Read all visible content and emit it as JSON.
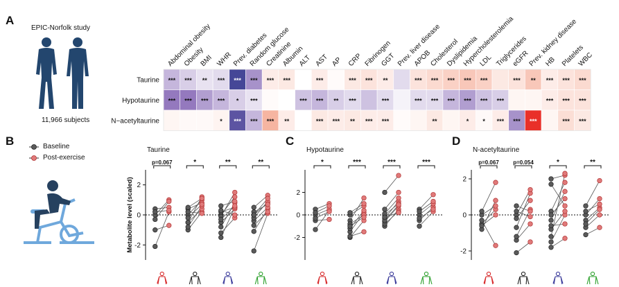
{
  "panels": {
    "a": "A",
    "b": "B",
    "c": "C",
    "d": "D"
  },
  "cohort": {
    "study": "EPIC-Norfolk study",
    "subjects": "11,966 subjects"
  },
  "legend": {
    "baseline": "Baseline",
    "post": "Post-exercise"
  },
  "colors": {
    "baseline": "#5a5a5a",
    "post": "#e07a7a",
    "strong_neg": "#2e3a8c",
    "strong_pos": "#e8231e",
    "fig_red": "#d62728",
    "fig_black": "#222222",
    "fig_blue": "#3a3a9a",
    "fig_green": "#2ca02c"
  },
  "chart_data": [
    {
      "type": "heatmap",
      "columns": [
        "Abdominal obesity",
        "Obesity",
        "BMI",
        "WHR",
        "Prev. diabetes",
        "Random glucose",
        "Creatinine",
        "Albumin",
        "ALT",
        "AST",
        "AP",
        "CRP",
        "Fibrinogen",
        "GGT",
        "Prev. liver disease",
        "APOB",
        "Cholesterol",
        "Dyslipidemia",
        "Hypercholesterolemia",
        "LDL",
        "Triglycerides",
        "eGFR",
        "Prev. kidney disease",
        "HB",
        "Platelets",
        "WBC"
      ],
      "rows": [
        "Taurine",
        "Hypotaurine",
        "N−acetyltaurine"
      ],
      "values": [
        [
          -0.3,
          -0.2,
          -0.12,
          -0.15,
          -0.9,
          -0.45,
          0.1,
          0.12,
          0.0,
          0.1,
          0.02,
          0.12,
          0.15,
          0.1,
          -0.15,
          0.15,
          0.2,
          0.25,
          0.3,
          0.25,
          0.12,
          0.15,
          0.3,
          0.1,
          0.15,
          0.2
        ],
        [
          -0.55,
          -0.55,
          -0.4,
          -0.3,
          -0.2,
          -0.12,
          0.02,
          0.0,
          -0.25,
          -0.3,
          -0.2,
          -0.15,
          -0.25,
          -0.15,
          -0.05,
          -0.15,
          -0.15,
          -0.3,
          -0.4,
          -0.25,
          -0.2,
          0.05,
          0.05,
          0.1,
          0.15,
          0.15
        ],
        [
          0.05,
          0.03,
          0.03,
          0.06,
          -0.8,
          -0.3,
          0.4,
          0.1,
          0.0,
          0.12,
          0.1,
          0.12,
          0.1,
          0.1,
          0.02,
          0.05,
          0.12,
          0.05,
          0.1,
          0.03,
          0.1,
          -0.45,
          0.95,
          0.05,
          0.18,
          0.12
        ]
      ],
      "stars": [
        [
          "***",
          "***",
          "**",
          "***",
          "***",
          "***",
          "***",
          "***",
          "",
          "***",
          "",
          "***",
          "***",
          "**",
          "",
          "***",
          "***",
          "***",
          "***",
          "***",
          "",
          "***",
          "**",
          "***",
          "***",
          "***"
        ],
        [
          "***",
          "***",
          "***",
          "***",
          "*",
          "***",
          "",
          "",
          "***",
          "***",
          "**",
          "***",
          "",
          "***",
          "",
          "***",
          "***",
          "***",
          "***",
          "***",
          "***",
          "",
          "",
          "***",
          "***",
          "***"
        ],
        [
          "",
          "",
          "",
          "*",
          "***",
          "***",
          "***",
          "**",
          "",
          "***",
          "***",
          "**",
          "***",
          "***",
          "",
          "",
          "**",
          "",
          "*",
          "*",
          "***",
          "***",
          "***",
          "",
          "***",
          "***"
        ]
      ]
    },
    {
      "type": "scatter",
      "title": "Taurine",
      "ylabel": "Metabolite level (scaled)",
      "ylim": [
        -3,
        3
      ],
      "yticks": [
        -2,
        0,
        2
      ],
      "groups": [
        "female-red",
        "male-black",
        "female-blue",
        "male-green"
      ],
      "annotations": [
        "p=0.067",
        "*",
        "**",
        "**"
      ],
      "pairs": [
        [
          [
            -2.1,
            0.2
          ],
          [
            -1.0,
            -0.7
          ],
          [
            0.4,
            0.5
          ],
          [
            0.0,
            1.0
          ],
          [
            0.2,
            0.3
          ],
          [
            -0.3,
            0.9
          ]
        ],
        [
          [
            -1.0,
            0.2
          ],
          [
            -0.5,
            0.4
          ],
          [
            -0.8,
            0.6
          ],
          [
            0.0,
            1.0
          ],
          [
            0.4,
            0.8
          ],
          [
            -0.5,
            1.2
          ],
          [
            0.2,
            0.1
          ],
          [
            -0.2,
            0.7
          ],
          [
            0.5,
            1.1
          ]
        ],
        [
          [
            -1.5,
            0.5
          ],
          [
            -1.2,
            -0.2
          ],
          [
            0.0,
            1.2
          ],
          [
            -0.5,
            0.4
          ],
          [
            0.2,
            0.5
          ],
          [
            -0.8,
            0.8
          ],
          [
            0.6,
            0.9
          ],
          [
            -0.1,
            1.5
          ],
          [
            0.3,
            0.0
          ],
          [
            -0.3,
            0.6
          ]
        ],
        [
          [
            -2.4,
            0.1
          ],
          [
            -1.1,
            0.4
          ],
          [
            -0.4,
            0.5
          ],
          [
            0.0,
            0.8
          ],
          [
            0.5,
            1.3
          ],
          [
            -0.2,
            0.9
          ],
          [
            0.2,
            0.7
          ],
          [
            -0.7,
            0.2
          ],
          [
            0.0,
            1.1
          ]
        ]
      ]
    },
    {
      "type": "scatter",
      "title": "Hypotaurine",
      "ylim": [
        -4,
        4
      ],
      "yticks": [
        -2,
        0,
        2
      ],
      "groups": [
        "female-red",
        "male-black",
        "female-blue",
        "male-green"
      ],
      "annotations": [
        "*",
        "***",
        "***",
        "***"
      ],
      "pairs": [
        [
          [
            -1.3,
            0.4
          ],
          [
            -0.5,
            -0.4
          ],
          [
            0.0,
            0.5
          ],
          [
            0.5,
            1.0
          ],
          [
            0.2,
            0.8
          ],
          [
            -0.3,
            0.3
          ]
        ],
        [
          [
            -2.0,
            -0.5
          ],
          [
            -1.5,
            0.2
          ],
          [
            -1.2,
            0.4
          ],
          [
            -0.5,
            1.5
          ],
          [
            -0.8,
            0.0
          ],
          [
            -1.0,
            -0.2
          ],
          [
            0.0,
            0.8
          ],
          [
            0.2,
            1.0
          ],
          [
            -1.9,
            -1.5
          ]
        ],
        [
          [
            -1.0,
            0.5
          ],
          [
            -0.6,
            0.8
          ],
          [
            -0.3,
            1.2
          ],
          [
            0.0,
            1.0
          ],
          [
            2.0,
            3.5
          ],
          [
            -0.8,
            0.3
          ],
          [
            0.5,
            2.0
          ],
          [
            -0.5,
            0.9
          ],
          [
            0.1,
            1.5
          ],
          [
            -0.2,
            0.2
          ]
        ],
        [
          [
            -1.0,
            0.3
          ],
          [
            -0.5,
            0.7
          ],
          [
            0.0,
            1.0
          ],
          [
            0.5,
            1.8
          ],
          [
            -0.3,
            0.5
          ],
          [
            0.3,
            1.2
          ]
        ]
      ]
    },
    {
      "type": "scatter",
      "title": "N-acetyltaurine",
      "ylim": [
        -2.5,
        2.5
      ],
      "yticks": [
        -2,
        0,
        2
      ],
      "groups": [
        "female-red",
        "male-black",
        "female-blue",
        "male-green"
      ],
      "annotations": [
        "p=0.067",
        "p=0.054",
        "*",
        "**"
      ],
      "pairs": [
        [
          [
            -0.8,
            0.8
          ],
          [
            -0.5,
            0.3
          ],
          [
            0.0,
            0.5
          ],
          [
            0.2,
            1.8
          ],
          [
            -0.3,
            -1.7
          ],
          [
            -0.6,
            0.0
          ]
        ],
        [
          [
            -2.1,
            -1.5
          ],
          [
            -1.4,
            -0.5
          ],
          [
            -1.2,
            0.3
          ],
          [
            -0.7,
            1.2
          ],
          [
            0.0,
            1.4
          ],
          [
            0.5,
            0.2
          ],
          [
            -0.2,
            0.8
          ],
          [
            0.2,
            -0.1
          ]
        ],
        [
          [
            -1.8,
            -1.3
          ],
          [
            -1.5,
            0.0
          ],
          [
            -0.8,
            0.2
          ],
          [
            -0.3,
            1.3
          ],
          [
            0.2,
            1.8
          ],
          [
            1.7,
            0.5
          ],
          [
            2.0,
            2.2
          ],
          [
            -0.6,
            -0.5
          ],
          [
            0.0,
            0.9
          ],
          [
            -1.2,
            2.3
          ]
        ],
        [
          [
            -1.1,
            -0.7
          ],
          [
            -0.7,
            0.0
          ],
          [
            -0.3,
            0.4
          ],
          [
            0.0,
            0.9
          ],
          [
            0.5,
            1.9
          ],
          [
            -0.5,
            0.3
          ],
          [
            0.2,
            0.6
          ]
        ]
      ]
    }
  ]
}
